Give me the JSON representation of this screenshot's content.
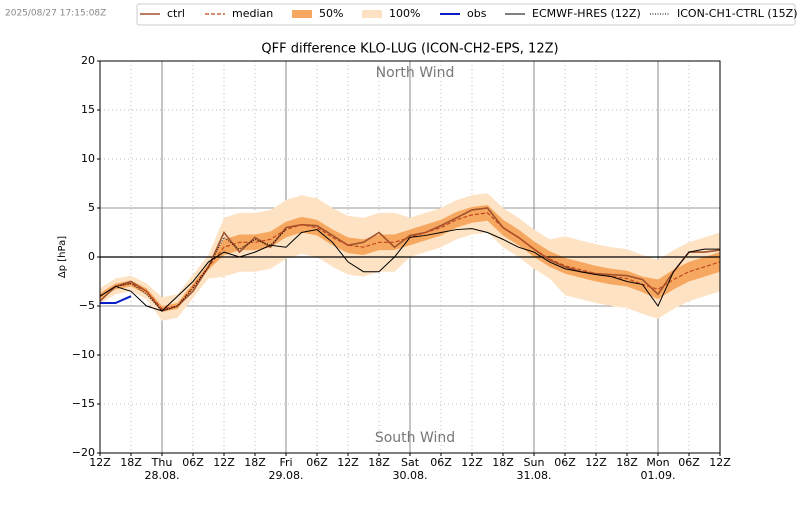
{
  "chart_data": {
    "type": "line",
    "timestamp": "2025/08/27 17:15:08Z",
    "title": "QFF difference KLO-LUG (ICON-CH2-EPS, 12Z)",
    "y_label": "Δp [hPa]",
    "annotations": [
      "North Wind",
      "South Wind"
    ],
    "x": [
      0,
      3,
      6,
      9,
      12,
      15,
      18,
      21,
      24,
      27,
      30,
      33,
      36,
      39,
      42,
      45,
      48,
      51,
      54,
      57,
      60,
      63,
      66,
      69,
      72,
      75,
      78,
      81,
      84,
      87,
      90,
      93,
      96,
      99,
      102,
      105,
      108,
      111,
      114,
      117,
      120
    ],
    "xlim": [
      0,
      120
    ],
    "xticks": [
      {
        "value": 0,
        "label": "12Z"
      },
      {
        "value": 6,
        "label": "18Z"
      },
      {
        "value": 12,
        "label": "Thu",
        "date": "28.08."
      },
      {
        "value": 18,
        "label": "06Z"
      },
      {
        "value": 24,
        "label": "12Z"
      },
      {
        "value": 30,
        "label": "18Z"
      },
      {
        "value": 36,
        "label": "Fri",
        "date": "29.08."
      },
      {
        "value": 42,
        "label": "06Z"
      },
      {
        "value": 48,
        "label": "12Z"
      },
      {
        "value": 54,
        "label": "18Z"
      },
      {
        "value": 60,
        "label": "Sat",
        "date": "30.08."
      },
      {
        "value": 66,
        "label": "06Z"
      },
      {
        "value": 72,
        "label": "12Z"
      },
      {
        "value": 78,
        "label": "18Z"
      },
      {
        "value": 84,
        "label": "Sun",
        "date": "31.08."
      },
      {
        "value": 90,
        "label": "06Z"
      },
      {
        "value": 96,
        "label": "12Z"
      },
      {
        "value": 102,
        "label": "18Z"
      },
      {
        "value": 108,
        "label": "Mon",
        "date": "01.09."
      },
      {
        "value": 114,
        "label": "06Z"
      },
      {
        "value": 120,
        "label": "12Z"
      }
    ],
    "ylim": [
      -20,
      20
    ],
    "yticks": [
      {
        "value": -20,
        "label": "−20"
      },
      {
        "value": -15,
        "label": "−15"
      },
      {
        "value": -10,
        "label": "−10"
      },
      {
        "value": -5,
        "label": "−5"
      },
      0,
      5,
      10,
      15,
      20
    ],
    "grid": true,
    "reference_lines": [
      -5,
      5
    ],
    "zero_line": 0,
    "bands": [
      {
        "name": "100%",
        "color": "#fde2c4",
        "lower": [
          -4.8,
          -3.8,
          -3.5,
          -4.3,
          -6.5,
          -6.2,
          -4.2,
          -2.2,
          -2,
          -1.5,
          -1.5,
          -1.2,
          -0.2,
          0.3,
          0,
          -1,
          -1.8,
          -2,
          -1.5,
          -1.5,
          0,
          0.5,
          1,
          1.8,
          2.3,
          2.5,
          1,
          0,
          -1.2,
          -2.2,
          -3.9,
          -4.3,
          -4.7,
          -5,
          -5.2,
          -5.8,
          -6.3,
          -5.3,
          -4.5,
          -4,
          -3.5
        ],
        "upper": [
          -3.2,
          -2.2,
          -1.9,
          -2.7,
          -4.1,
          -3.8,
          -1.8,
          0.2,
          4,
          4.5,
          4.5,
          4.8,
          5.8,
          6.3,
          6,
          5,
          4.2,
          4,
          4.5,
          4.5,
          4,
          4.5,
          5,
          5.8,
          6.3,
          6.5,
          5,
          4,
          2.8,
          1.8,
          2.1,
          1.7,
          1.3,
          1,
          0.8,
          0.2,
          -0.3,
          0.7,
          1.5,
          2,
          2.5
        ]
      },
      {
        "name": "50%",
        "color": "#f6a860",
        "lower": [
          -4.3,
          -3.3,
          -3,
          -3.8,
          -5.6,
          -5.3,
          -3.3,
          -1.3,
          0.2,
          0.7,
          0.7,
          1,
          2,
          2.5,
          2.2,
          1.2,
          0.4,
          0.2,
          0.7,
          0.7,
          1.2,
          1.7,
          2.2,
          3,
          3.5,
          3.7,
          2.2,
          1.2,
          0,
          -1,
          -1.7,
          -2.1,
          -2.5,
          -2.8,
          -3,
          -3.6,
          -4.3,
          -3.3,
          -2.5,
          -2,
          -1.5
        ],
        "upper": [
          -3.7,
          -2.7,
          -2.4,
          -3.2,
          -5,
          -4.7,
          -2.7,
          -0.7,
          1.8,
          2.3,
          2.3,
          2.6,
          3.6,
          4.1,
          3.8,
          2.8,
          2,
          1.8,
          2.3,
          2.3,
          2.8,
          3.3,
          3.8,
          4.6,
          5.1,
          5.3,
          3.8,
          2.8,
          1.6,
          0.6,
          -0.1,
          -0.5,
          -0.9,
          -1.2,
          -1.4,
          -2,
          -2.3,
          -1.3,
          -0.5,
          0,
          0.5
        ]
      }
    ],
    "series": [
      {
        "name": "ctrl",
        "color": "#a0522d",
        "style": "solid",
        "width": 1.6,
        "values": [
          -4.5,
          -3,
          -2.5,
          -3.5,
          -5.5,
          -5,
          -3.5,
          -1,
          2.5,
          0.5,
          2,
          1,
          3,
          3.3,
          3.2,
          2.2,
          1.2,
          1.5,
          2.5,
          1,
          2.2,
          2.5,
          3.2,
          4,
          4.8,
          5,
          3,
          2,
          0.8,
          -0.3,
          -1,
          -1.5,
          -1.7,
          -1.8,
          -1.9,
          -2.3,
          -3.8,
          -1.5,
          0.5,
          0.5,
          0.7
        ]
      },
      {
        "name": "median",
        "color": "#c0461e",
        "style": "dashed",
        "width": 1.2,
        "values": [
          -4,
          -3,
          -2.7,
          -3.5,
          -5.3,
          -5,
          -3,
          -1,
          1,
          1.5,
          1.5,
          1.8,
          2.8,
          3.3,
          3,
          2,
          1.2,
          1,
          1.5,
          1.5,
          2,
          2.5,
          3,
          3.8,
          4.3,
          4.5,
          3,
          2,
          0.8,
          -0.2,
          -0.9,
          -1.3,
          -1.7,
          -2,
          -2.2,
          -2.8,
          -3.3,
          -2.3,
          -1.5,
          -1,
          -0.5
        ]
      },
      {
        "name": "obs",
        "color": "#0a1ec8",
        "style": "solid",
        "width": 2,
        "values": [
          -4.7,
          -4.7,
          -4.0,
          null,
          null,
          null,
          null,
          null,
          null,
          null,
          null,
          null,
          null,
          null,
          null,
          null,
          null,
          null,
          null,
          null,
          null,
          null,
          null,
          null,
          null,
          null,
          null,
          null,
          null,
          null,
          null,
          null,
          null,
          null,
          null,
          null,
          null,
          null,
          null,
          null,
          null
        ]
      },
      {
        "name": "ECMWF-HRES (12Z)",
        "color": "#000000",
        "style": "solid",
        "width": 1,
        "values": [
          -4,
          -3,
          -3.5,
          -5,
          -5.5,
          -4,
          -2.5,
          -0.5,
          0.5,
          0,
          0.5,
          1.2,
          1,
          2.5,
          2.8,
          1.5,
          -0.5,
          -1.5,
          -1.5,
          0,
          2,
          2.2,
          2.5,
          2.8,
          2.9,
          2.5,
          1.8,
          1,
          0.5,
          -0.5,
          -1.2,
          -1.5,
          -1.8,
          -2,
          -2.5,
          -2.8,
          -5,
          -1.5,
          0.5,
          0.8,
          0.8
        ]
      },
      {
        "name": "ICON-CH1-CTRL (15Z)",
        "color": "#000000",
        "style": "dotted",
        "width": 1,
        "values": [
          null,
          -3,
          -2.7,
          -3.8,
          -5.5,
          -5,
          -3.2,
          -1,
          2,
          0.8,
          1.8,
          1.2,
          2.8,
          null,
          null,
          null,
          null,
          null,
          null,
          null,
          null,
          null,
          null,
          null,
          null,
          null,
          null,
          null,
          null,
          null,
          null,
          null,
          null,
          null,
          null,
          null,
          null,
          null,
          null,
          null,
          null
        ]
      }
    ]
  }
}
